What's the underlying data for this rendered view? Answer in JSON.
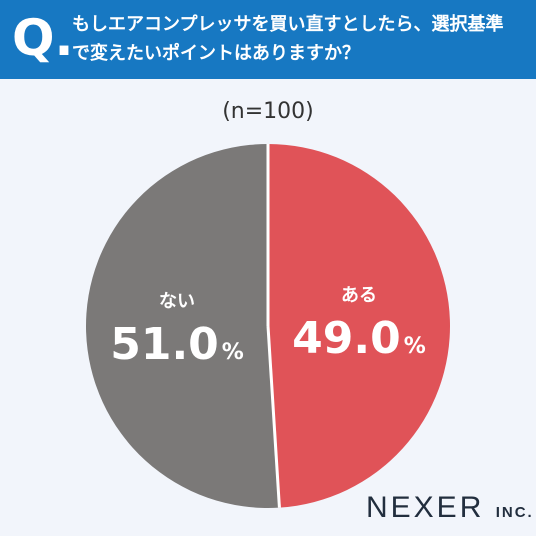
{
  "header": {
    "q_mark": "Q.",
    "question_line1": "もしエアコンプレッサを買い直すとしたら、選択基準",
    "question_line2": "で変えたいポイントはありますか？"
  },
  "sample_size": "(n=100)",
  "brand": {
    "name": "NEXER",
    "suffix": "INC."
  },
  "colors": {
    "header": "#1778c2",
    "yes": "#e05358",
    "no": "#7b7978",
    "background": "#f2f5fb"
  },
  "chart_data": {
    "type": "pie",
    "title": "",
    "slices": [
      {
        "label": "ある",
        "value": 49.0,
        "display_value": "49.0",
        "unit": "%",
        "color": "#e05358"
      },
      {
        "label": "ない",
        "value": 51.0,
        "display_value": "51.0",
        "unit": "%",
        "color": "#7b7978"
      }
    ]
  }
}
